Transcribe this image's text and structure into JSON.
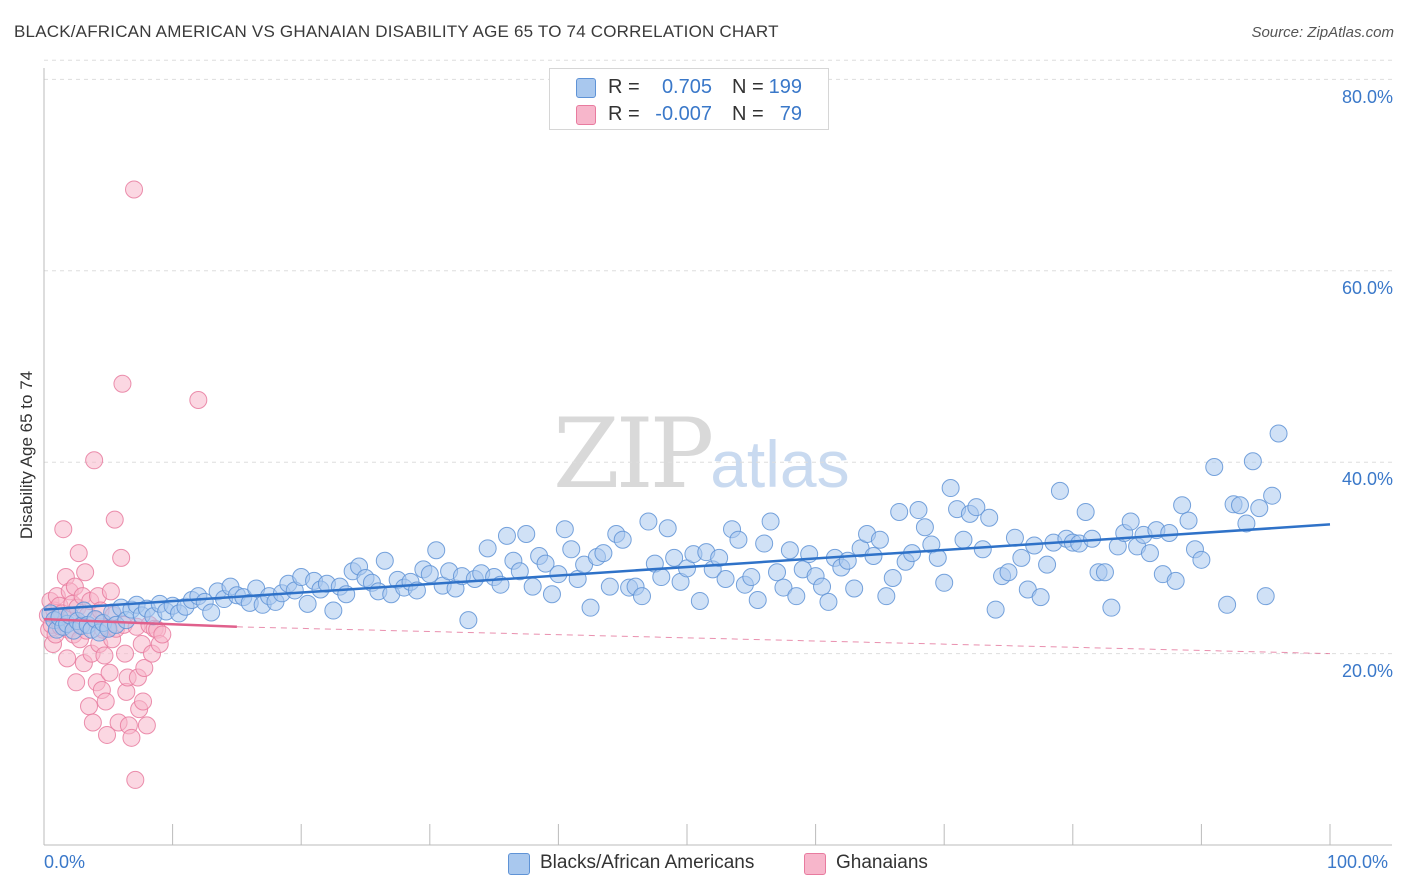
{
  "header": {
    "title": "BLACK/AFRICAN AMERICAN VS GHANAIAN DISABILITY AGE 65 TO 74 CORRELATION CHART",
    "source": "Source: ZipAtlas.com"
  },
  "watermark": {
    "zip": "ZIP",
    "atlas": "atlas"
  },
  "legend_top": [
    {
      "r_label": "R =",
      "r_value": "0.705",
      "n_label": "N =",
      "n_value": "199"
    },
    {
      "r_label": "R =",
      "r_value": "-0.007",
      "n_label": "N =",
      "n_value": "79"
    }
  ],
  "legend_bottom": [
    {
      "label": "Blacks/African Americans"
    },
    {
      "label": "Ghanaians"
    }
  ],
  "colors": {
    "blue_fill": "#a9c8ee",
    "blue_stroke": "#5f93d6",
    "blue_line": "#2f72c8",
    "pink_fill": "#f7b6cb",
    "pink_stroke": "#e87b9f",
    "pink_line": "#e0608c",
    "axis_label": "#3a78c9",
    "grid": "#dddddd"
  },
  "chart_data": {
    "type": "scatter",
    "title": "BLACK/AFRICAN AMERICAN VS GHANAIAN DISABILITY AGE 65 TO 74 CORRELATION CHART",
    "xlabel": "",
    "ylabel": "Disability Age 65 to 74",
    "xlim": [
      0,
      100
    ],
    "ylim": [
      0,
      82
    ],
    "y_ticks": [
      20,
      40,
      60,
      80
    ],
    "y_tick_labels": [
      "20.0%",
      "40.0%",
      "60.0%",
      "80.0%"
    ],
    "x_tick_labels": [
      "0.0%",
      "100.0%"
    ],
    "grid": true,
    "series": [
      {
        "name": "Blacks/African Americans",
        "r": 0.705,
        "n": 199,
        "trend": {
          "x": [
            0,
            100
          ],
          "y": [
            24.6,
            33.5
          ]
        },
        "points": [
          [
            0.5,
            24.2
          ],
          [
            0.8,
            23.5
          ],
          [
            1.0,
            22.5
          ],
          [
            1.2,
            23.8
          ],
          [
            1.5,
            22.8
          ],
          [
            1.8,
            23.1
          ],
          [
            2.0,
            24.0
          ],
          [
            2.3,
            22.4
          ],
          [
            2.6,
            23.4
          ],
          [
            2.9,
            22.9
          ],
          [
            3.1,
            24.5
          ],
          [
            3.4,
            23.0
          ],
          [
            3.7,
            22.5
          ],
          [
            4.0,
            23.6
          ],
          [
            4.3,
            22.2
          ],
          [
            4.6,
            23.2
          ],
          [
            5.0,
            22.6
          ],
          [
            5.3,
            24.3
          ],
          [
            5.6,
            23.0
          ],
          [
            6.0,
            24.8
          ],
          [
            6.4,
            23.5
          ],
          [
            6.8,
            24.6
          ],
          [
            7.2,
            25.1
          ],
          [
            7.6,
            24.0
          ],
          [
            8.0,
            24.7
          ],
          [
            8.5,
            23.9
          ],
          [
            9.0,
            25.2
          ],
          [
            9.5,
            24.4
          ],
          [
            10.0,
            25.0
          ],
          [
            10.5,
            24.2
          ],
          [
            11.0,
            24.9
          ],
          [
            11.5,
            25.6
          ],
          [
            12.0,
            26.0
          ],
          [
            12.5,
            25.4
          ],
          [
            13.0,
            24.3
          ],
          [
            13.5,
            26.5
          ],
          [
            14.0,
            25.7
          ],
          [
            14.5,
            27.0
          ],
          [
            15.0,
            26.1
          ],
          [
            15.5,
            25.9
          ],
          [
            16.0,
            25.3
          ],
          [
            16.5,
            26.8
          ],
          [
            17.0,
            25.1
          ],
          [
            17.5,
            26.0
          ],
          [
            18.0,
            25.4
          ],
          [
            18.5,
            26.3
          ],
          [
            19.0,
            27.3
          ],
          [
            19.5,
            26.6
          ],
          [
            20.0,
            28.0
          ],
          [
            20.5,
            25.2
          ],
          [
            21.0,
            27.6
          ],
          [
            21.5,
            26.7
          ],
          [
            22.0,
            27.3
          ],
          [
            22.5,
            24.5
          ],
          [
            23.0,
            27.0
          ],
          [
            23.5,
            26.2
          ],
          [
            24.0,
            28.6
          ],
          [
            24.5,
            29.1
          ],
          [
            25.0,
            27.9
          ],
          [
            25.5,
            27.4
          ],
          [
            26.0,
            26.5
          ],
          [
            26.5,
            29.7
          ],
          [
            27.0,
            26.2
          ],
          [
            27.5,
            27.7
          ],
          [
            28.0,
            26.9
          ],
          [
            28.5,
            27.5
          ],
          [
            29.0,
            26.6
          ],
          [
            29.5,
            28.8
          ],
          [
            30.0,
            28.3
          ],
          [
            30.5,
            30.8
          ],
          [
            31.0,
            27.1
          ],
          [
            31.5,
            28.6
          ],
          [
            32.0,
            26.8
          ],
          [
            32.5,
            28.1
          ],
          [
            33.0,
            23.5
          ],
          [
            33.5,
            27.8
          ],
          [
            34.0,
            28.4
          ],
          [
            34.5,
            31.0
          ],
          [
            35.0,
            28.0
          ],
          [
            35.5,
            27.2
          ],
          [
            36.0,
            32.3
          ],
          [
            36.5,
            29.7
          ],
          [
            37.0,
            28.6
          ],
          [
            37.5,
            32.5
          ],
          [
            38.0,
            27.0
          ],
          [
            38.5,
            30.2
          ],
          [
            39.0,
            29.4
          ],
          [
            39.5,
            26.2
          ],
          [
            40.0,
            28.3
          ],
          [
            40.5,
            33.0
          ],
          [
            41.0,
            30.9
          ],
          [
            41.5,
            27.8
          ],
          [
            42.0,
            29.3
          ],
          [
            42.5,
            24.8
          ],
          [
            43.0,
            30.1
          ],
          [
            43.5,
            30.5
          ],
          [
            44.0,
            27.0
          ],
          [
            44.5,
            32.5
          ],
          [
            45.0,
            31.9
          ],
          [
            45.5,
            26.9
          ],
          [
            46.0,
            27.0
          ],
          [
            46.5,
            26.0
          ],
          [
            47.0,
            33.8
          ],
          [
            47.5,
            29.4
          ],
          [
            48.0,
            28.0
          ],
          [
            48.5,
            33.1
          ],
          [
            49.0,
            30.0
          ],
          [
            49.5,
            27.5
          ],
          [
            50.0,
            28.9
          ],
          [
            50.5,
            30.4
          ],
          [
            51.0,
            25.5
          ],
          [
            51.5,
            30.6
          ],
          [
            52.0,
            28.8
          ],
          [
            52.5,
            30.0
          ],
          [
            53.0,
            27.8
          ],
          [
            53.5,
            33.0
          ],
          [
            54.0,
            31.9
          ],
          [
            54.5,
            27.2
          ],
          [
            55.0,
            28.0
          ],
          [
            55.5,
            25.6
          ],
          [
            56.0,
            31.5
          ],
          [
            56.5,
            33.8
          ],
          [
            57.0,
            28.5
          ],
          [
            57.5,
            26.9
          ],
          [
            58.0,
            30.8
          ],
          [
            58.5,
            26.0
          ],
          [
            59.0,
            28.8
          ],
          [
            59.5,
            30.4
          ],
          [
            60.0,
            28.1
          ],
          [
            60.5,
            27.0
          ],
          [
            61.0,
            25.4
          ],
          [
            61.5,
            30.0
          ],
          [
            62.0,
            29.0
          ],
          [
            62.5,
            29.7
          ],
          [
            63.0,
            26.8
          ],
          [
            63.5,
            31.0
          ],
          [
            64.0,
            32.5
          ],
          [
            64.5,
            30.2
          ],
          [
            65.0,
            31.9
          ],
          [
            65.5,
            26.0
          ],
          [
            66.0,
            27.9
          ],
          [
            66.5,
            34.8
          ],
          [
            67.0,
            29.6
          ],
          [
            67.5,
            30.5
          ],
          [
            68.0,
            35.0
          ],
          [
            68.5,
            33.2
          ],
          [
            69.0,
            31.4
          ],
          [
            69.5,
            30.0
          ],
          [
            70.0,
            27.4
          ],
          [
            70.5,
            37.3
          ],
          [
            71.0,
            35.1
          ],
          [
            71.5,
            31.9
          ],
          [
            72.0,
            34.6
          ],
          [
            72.5,
            35.3
          ],
          [
            73.0,
            30.9
          ],
          [
            73.5,
            34.2
          ],
          [
            74.0,
            24.6
          ],
          [
            74.5,
            28.1
          ],
          [
            75.0,
            28.5
          ],
          [
            75.5,
            32.1
          ],
          [
            76.0,
            30.0
          ],
          [
            76.5,
            26.7
          ],
          [
            77.0,
            31.3
          ],
          [
            77.5,
            25.9
          ],
          [
            78.0,
            29.3
          ],
          [
            78.5,
            31.6
          ],
          [
            79.0,
            37.0
          ],
          [
            79.5,
            32.0
          ],
          [
            80.0,
            31.6
          ],
          [
            80.5,
            31.5
          ],
          [
            81.0,
            34.8
          ],
          [
            81.5,
            32.0
          ],
          [
            82.0,
            28.5
          ],
          [
            82.5,
            28.5
          ],
          [
            83.0,
            24.8
          ],
          [
            83.5,
            31.2
          ],
          [
            84.0,
            32.6
          ],
          [
            84.5,
            33.8
          ],
          [
            85.0,
            31.2
          ],
          [
            85.5,
            32.4
          ],
          [
            86.0,
            30.5
          ],
          [
            86.5,
            32.9
          ],
          [
            87.0,
            28.3
          ],
          [
            87.5,
            32.6
          ],
          [
            88.0,
            27.6
          ],
          [
            88.5,
            35.5
          ],
          [
            89.0,
            33.9
          ],
          [
            89.5,
            30.9
          ],
          [
            90.0,
            29.8
          ],
          [
            91.0,
            39.5
          ],
          [
            92.0,
            25.1
          ],
          [
            92.5,
            35.6
          ],
          [
            93.0,
            35.5
          ],
          [
            93.5,
            33.6
          ],
          [
            94.0,
            40.1
          ],
          [
            94.5,
            35.2
          ],
          [
            95.0,
            26.0
          ],
          [
            95.5,
            36.5
          ],
          [
            96.0,
            43.0
          ]
        ]
      },
      {
        "name": "Ghanaians",
        "r": -0.007,
        "n": 79,
        "trend": {
          "x": [
            0,
            15
          ],
          "y": [
            23.6,
            22.8
          ]
        },
        "trend_extension": {
          "x": [
            15,
            100
          ],
          "y": [
            22.8,
            20.0
          ]
        },
        "points": [
          [
            0.3,
            24.0
          ],
          [
            0.4,
            22.5
          ],
          [
            0.5,
            25.5
          ],
          [
            0.6,
            23.0
          ],
          [
            0.7,
            21.0
          ],
          [
            0.8,
            24.5
          ],
          [
            0.9,
            22.0
          ],
          [
            1.0,
            26.0
          ],
          [
            1.1,
            23.5
          ],
          [
            1.2,
            25.0
          ],
          [
            1.3,
            22.8
          ],
          [
            1.4,
            24.2
          ],
          [
            1.5,
            33.0
          ],
          [
            1.6,
            23.2
          ],
          [
            1.7,
            28.0
          ],
          [
            1.8,
            19.5
          ],
          [
            1.9,
            22.5
          ],
          [
            2.0,
            26.5
          ],
          [
            2.1,
            23.8
          ],
          [
            2.2,
            25.2
          ],
          [
            2.3,
            22.0
          ],
          [
            2.4,
            27.0
          ],
          [
            2.5,
            17.0
          ],
          [
            2.6,
            24.8
          ],
          [
            2.7,
            30.5
          ],
          [
            2.8,
            21.5
          ],
          [
            2.9,
            23.0
          ],
          [
            3.0,
            26.0
          ],
          [
            3.1,
            19.0
          ],
          [
            3.2,
            28.5
          ],
          [
            3.3,
            22.4
          ],
          [
            3.4,
            24.0
          ],
          [
            3.5,
            14.5
          ],
          [
            3.6,
            25.5
          ],
          [
            3.7,
            20.0
          ],
          [
            3.8,
            12.8
          ],
          [
            3.9,
            40.2
          ],
          [
            4.0,
            23.5
          ],
          [
            4.1,
            17.0
          ],
          [
            4.2,
            26.0
          ],
          [
            4.3,
            21.0
          ],
          [
            4.4,
            24.5
          ],
          [
            4.5,
            16.2
          ],
          [
            4.6,
            22.5
          ],
          [
            4.7,
            19.8
          ],
          [
            4.8,
            15.0
          ],
          [
            4.9,
            11.5
          ],
          [
            5.0,
            22.8
          ],
          [
            5.1,
            18.0
          ],
          [
            5.2,
            26.5
          ],
          [
            5.3,
            21.5
          ],
          [
            5.4,
            24.0
          ],
          [
            5.5,
            34.0
          ],
          [
            5.6,
            22.6
          ],
          [
            5.8,
            12.8
          ],
          [
            6.0,
            30.0
          ],
          [
            6.1,
            48.2
          ],
          [
            6.2,
            23.0
          ],
          [
            6.3,
            20.0
          ],
          [
            6.4,
            16.0
          ],
          [
            6.5,
            17.5
          ],
          [
            6.6,
            12.5
          ],
          [
            6.8,
            11.2
          ],
          [
            7.0,
            68.5
          ],
          [
            7.1,
            6.8
          ],
          [
            7.2,
            22.8
          ],
          [
            7.3,
            17.5
          ],
          [
            7.4,
            14.2
          ],
          [
            7.6,
            21.0
          ],
          [
            7.7,
            15.0
          ],
          [
            7.8,
            18.5
          ],
          [
            8.0,
            12.5
          ],
          [
            8.2,
            23.0
          ],
          [
            8.4,
            20.0
          ],
          [
            8.6,
            22.6
          ],
          [
            8.8,
            22.5
          ],
          [
            9.0,
            21.0
          ],
          [
            9.2,
            22.0
          ],
          [
            12.0,
            46.5
          ]
        ]
      }
    ]
  }
}
